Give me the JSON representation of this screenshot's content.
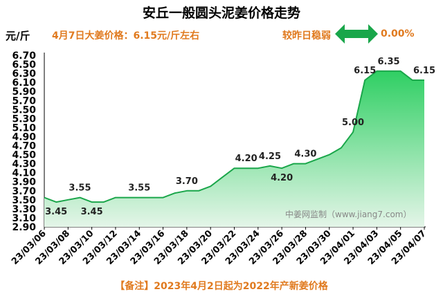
{
  "title": "安丘一般圆头泥姜价格走势",
  "unit": "元/斤",
  "price_note": "4月7日大姜价格：6.15元/斤左右",
  "change": {
    "label": "较昨日稳弱",
    "percent": "0.00%",
    "arrow_color": "#19a64a"
  },
  "footnote": "【备注】2023年4月2日起为2022年产新姜价格",
  "watermark": "中姜网监制（www.jiang7.com）",
  "colors": {
    "line": "#1aa64a",
    "fill_top": "#2fcf63",
    "fill_bottom": "#dff3e4",
    "accent": "#e07a1f"
  },
  "chart_data": {
    "type": "area",
    "title": "安丘一般圆头泥姜价格走势",
    "ylabel": "元/斤",
    "xlabel": "",
    "ylim": [
      2.9,
      6.7
    ],
    "yticks": [
      "6.70",
      "6.50",
      "6.30",
      "6.10",
      "5.90",
      "5.70",
      "5.50",
      "5.30",
      "5.10",
      "4.90",
      "4.70",
      "4.50",
      "4.30",
      "4.10",
      "3.90",
      "3.70",
      "3.50",
      "3.30",
      "3.10",
      "2.90"
    ],
    "grid": false,
    "x": [
      "23/03/06",
      "23/03/07",
      "23/03/08",
      "23/03/09",
      "23/03/10",
      "23/03/11",
      "23/03/12",
      "23/03/13",
      "23/03/14",
      "23/03/15",
      "23/03/16",
      "23/03/17",
      "23/03/18",
      "23/03/19",
      "23/03/20",
      "23/03/21",
      "23/03/22",
      "23/03/23",
      "23/03/24",
      "23/03/25",
      "23/03/26",
      "23/03/27",
      "23/03/28",
      "23/03/29",
      "23/03/30",
      "23/03/31",
      "23/04/01",
      "23/04/02",
      "23/04/03",
      "23/04/04",
      "23/04/05",
      "23/04/06",
      "23/04/07"
    ],
    "xtick_labels": [
      "23/03/06",
      "23/03/08",
      "23/03/10",
      "23/03/12",
      "23/03/14",
      "23/03/16",
      "23/03/18",
      "23/03/20",
      "23/03/22",
      "23/03/24",
      "23/03/26",
      "23/03/28",
      "23/03/30",
      "23/04/01",
      "23/04/03",
      "23/04/05",
      "23/04/07"
    ],
    "values": [
      3.55,
      3.45,
      3.5,
      3.55,
      3.45,
      3.45,
      3.55,
      3.55,
      3.55,
      3.55,
      3.55,
      3.65,
      3.7,
      3.7,
      3.8,
      4.0,
      4.2,
      4.2,
      4.2,
      4.25,
      4.2,
      4.3,
      4.3,
      4.4,
      4.5,
      4.65,
      5.0,
      6.15,
      6.35,
      6.35,
      6.35,
      6.15,
      6.15
    ],
    "data_labels": [
      {
        "i": 1,
        "text": "3.45"
      },
      {
        "i": 3,
        "text": "3.55"
      },
      {
        "i": 4,
        "text": "3.45"
      },
      {
        "i": 8,
        "text": "3.55"
      },
      {
        "i": 12,
        "text": "3.70"
      },
      {
        "i": 17,
        "text": "4.20"
      },
      {
        "i": 19,
        "text": "4.25"
      },
      {
        "i": 20,
        "text": "4.20"
      },
      {
        "i": 22,
        "text": "4.30"
      },
      {
        "i": 26,
        "text": "5.00"
      },
      {
        "i": 27,
        "text": "6.15"
      },
      {
        "i": 29,
        "text": "6.35"
      },
      {
        "i": 32,
        "text": "6.15"
      }
    ]
  }
}
